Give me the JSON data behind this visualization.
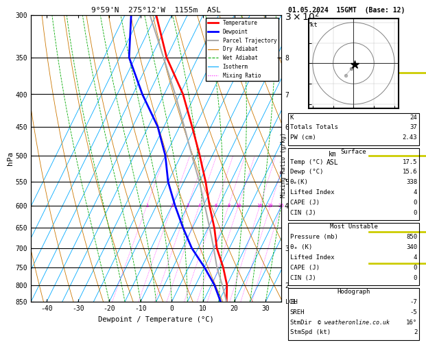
{
  "title_left": "9°59'N  275°12'W  1155m  ASL",
  "title_right": "01.05.2024  15GMT  (Base: 12)",
  "xlabel": "Dewpoint / Temperature (°C)",
  "ylabel_left": "hPa",
  "background_color": "#ffffff",
  "temp_color": "#ff0000",
  "dewp_color": "#0000ff",
  "parcel_color": "#aaaaaa",
  "dry_adiabat_color": "#cc7700",
  "wet_adiabat_color": "#00aa00",
  "isotherm_color": "#00aaff",
  "mixing_ratio_color": "#ff00ff",
  "pressure_levels": [
    300,
    350,
    400,
    450,
    500,
    550,
    600,
    650,
    700,
    750,
    800,
    850
  ],
  "pressure_min": 300,
  "pressure_max": 850,
  "temp_min": -45,
  "temp_max": 35,
  "temp_data_pressure": [
    850,
    800,
    750,
    700,
    650,
    600,
    550,
    500,
    450,
    400,
    350,
    300
  ],
  "temp_data_temp": [
    17.5,
    15.0,
    11.0,
    6.0,
    2.0,
    -3.0,
    -8.0,
    -14.0,
    -21.0,
    -29.0,
    -40.0,
    -50.0
  ],
  "dewp_data_pressure": [
    850,
    800,
    750,
    700,
    650,
    600,
    550,
    500,
    450,
    400,
    350,
    300
  ],
  "dewp_data_temp": [
    15.6,
    11.0,
    5.0,
    -2.0,
    -8.0,
    -14.0,
    -20.0,
    -25.0,
    -32.0,
    -42.0,
    -52.0,
    -58.0
  ],
  "parcel_data_pressure": [
    850,
    800,
    750,
    700,
    650,
    600,
    550,
    500,
    450,
    400,
    350,
    300
  ],
  "parcel_data_temp": [
    17.5,
    13.5,
    9.0,
    5.0,
    0.5,
    -4.5,
    -10.0,
    -16.5,
    -23.5,
    -31.5,
    -41.0,
    -52.0
  ],
  "mixing_ratio_values": [
    1,
    2,
    3,
    4,
    6,
    8,
    10,
    16,
    20,
    25
  ],
  "stats_K": 24,
  "stats_TT": 37,
  "stats_PW": 2.43,
  "stats_sfc_temp": 17.5,
  "stats_sfc_dewp": 15.6,
  "stats_sfc_theta_e": 338,
  "stats_sfc_LI": 4,
  "stats_sfc_CAPE": 0,
  "stats_sfc_CIN": 0,
  "stats_mu_pres": 850,
  "stats_mu_theta_e": 340,
  "stats_mu_LI": 4,
  "stats_mu_CAPE": 0,
  "stats_mu_CIN": 0,
  "stats_EH": -7,
  "stats_SREH": -5,
  "stats_StmDir": 16,
  "stats_StmSpd": 2,
  "km_ticks_p": [
    350,
    400,
    450,
    550,
    600,
    700,
    800
  ],
  "km_ticks_labels": [
    "8",
    "7",
    "6",
    "5",
    "4",
    "3",
    "2"
  ],
  "yellow_ticks_p": [
    370,
    500,
    660,
    740
  ],
  "yellow_color": "#cccc00"
}
